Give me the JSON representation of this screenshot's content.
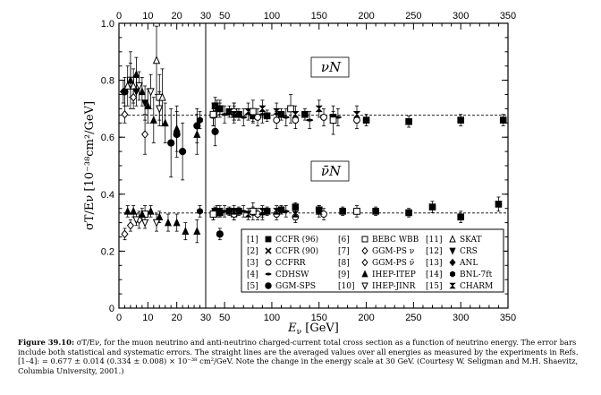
{
  "chart_data": {
    "type": "scatter",
    "x_axis": {
      "label_symbol": "E",
      "label_sub": "ν",
      "label_unit": "[GeV]",
      "break_at": 30,
      "bottom_ticks_low": [
        "0",
        "10",
        "20",
        "30"
      ],
      "bottom_ticks_high": [
        "50",
        "100",
        "150",
        "200",
        "250",
        "300",
        "350"
      ],
      "top_ticks_low": [
        "0",
        "10",
        "20",
        "30"
      ],
      "top_ticks_high": [
        "50",
        "100",
        "150",
        "200",
        "250",
        "300",
        "350"
      ],
      "low_range": [
        0,
        30
      ],
      "high_range": [
        30,
        350
      ]
    },
    "y_axis": {
      "label": "σT/Eν [10⁻³⁸cm²/GeV]",
      "ylim": [
        0,
        1.0
      ],
      "ticks": [
        "0",
        "0.2",
        "0.4",
        "0.6",
        "0.8",
        "1.0"
      ]
    },
    "panel_labels": [
      "νN",
      "ν̄N"
    ],
    "averages": {
      "neutrino": 0.677,
      "antineutrino": 0.334
    },
    "legend": [
      {
        "id": "[1]",
        "name": "CCFR (96)",
        "marker": "square"
      },
      {
        "id": "[2]",
        "name": "CCFR (90)",
        "marker": "x"
      },
      {
        "id": "[3]",
        "name": "CCFRR",
        "marker": "circle-open"
      },
      {
        "id": "[4]",
        "name": "CDHSW",
        "marker": "dash"
      },
      {
        "id": "[5]",
        "name": "GGM-SPS",
        "marker": "circle"
      },
      {
        "id": "[6]",
        "name": "BEBC WBB",
        "marker": "square-open"
      },
      {
        "id": "[7]",
        "name": "GGM-PS ν",
        "marker": "diamond-open"
      },
      {
        "id": "[8]",
        "name": "GGM-PS ν̄",
        "marker": "diamond-open"
      },
      {
        "id": "[9]",
        "name": "IHEP-ITEP",
        "marker": "triangle"
      },
      {
        "id": "[10]",
        "name": "IHEP-JINR",
        "marker": "triangle-down-open"
      },
      {
        "id": "[11]",
        "name": "SKAT",
        "marker": "triangle-open"
      },
      {
        "id": "[12]",
        "name": "CRS",
        "marker": "triangle-down"
      },
      {
        "id": "[13]",
        "name": "ANL",
        "marker": "diamond"
      },
      {
        "id": "[14]",
        "name": "BNL-7ft",
        "marker": "hexagon"
      },
      {
        "id": "[15]",
        "name": "CHARM",
        "marker": "bowtie"
      }
    ],
    "series": [
      {
        "ref": "[1]",
        "marker": "square",
        "points": [
          {
            "x": 40,
            "y": 0.71,
            "e": 0.03
          },
          {
            "x": 45,
            "y": 0.7,
            "e": 0.02
          },
          {
            "x": 55,
            "y": 0.69,
            "e": 0.02
          },
          {
            "x": 65,
            "y": 0.68,
            "e": 0.02
          },
          {
            "x": 80,
            "y": 0.675,
            "e": 0.02
          },
          {
            "x": 95,
            "y": 0.675,
            "e": 0.02
          },
          {
            "x": 110,
            "y": 0.68,
            "e": 0.02
          },
          {
            "x": 135,
            "y": 0.68,
            "e": 0.02
          },
          {
            "x": 165,
            "y": 0.67,
            "e": 0.02
          },
          {
            "x": 200,
            "y": 0.66,
            "e": 0.02
          },
          {
            "x": 245,
            "y": 0.655,
            "e": 0.02
          },
          {
            "x": 300,
            "y": 0.66,
            "e": 0.02
          },
          {
            "x": 345,
            "y": 0.66,
            "e": 0.02
          },
          {
            "x": 40,
            "y": 0.34,
            "e": 0.015
          },
          {
            "x": 45,
            "y": 0.335,
            "e": 0.015
          },
          {
            "x": 55,
            "y": 0.34,
            "e": 0.015
          },
          {
            "x": 65,
            "y": 0.34,
            "e": 0.015
          },
          {
            "x": 80,
            "y": 0.34,
            "e": 0.015
          },
          {
            "x": 95,
            "y": 0.34,
            "e": 0.015
          },
          {
            "x": 110,
            "y": 0.345,
            "e": 0.015
          },
          {
            "x": 125,
            "y": 0.355,
            "e": 0.015
          },
          {
            "x": 150,
            "y": 0.345,
            "e": 0.015
          },
          {
            "x": 175,
            "y": 0.34,
            "e": 0.015
          },
          {
            "x": 210,
            "y": 0.34,
            "e": 0.015
          },
          {
            "x": 245,
            "y": 0.335,
            "e": 0.015
          },
          {
            "x": 270,
            "y": 0.355,
            "e": 0.02
          },
          {
            "x": 300,
            "y": 0.32,
            "e": 0.02
          },
          {
            "x": 340,
            "y": 0.365,
            "e": 0.025
          }
        ]
      },
      {
        "ref": "[2]",
        "marker": "x",
        "points": [
          {
            "x": 42,
            "y": 0.7,
            "e": 0.03
          },
          {
            "x": 60,
            "y": 0.69,
            "e": 0.03
          },
          {
            "x": 42,
            "y": 0.34,
            "e": 0.02
          },
          {
            "x": 60,
            "y": 0.33,
            "e": 0.02
          }
        ]
      },
      {
        "ref": "[3]",
        "marker": "circle-open",
        "points": [
          {
            "x": 60,
            "y": 0.69,
            "e": 0.03
          },
          {
            "x": 85,
            "y": 0.67,
            "e": 0.03
          },
          {
            "x": 105,
            "y": 0.66,
            "e": 0.03
          },
          {
            "x": 125,
            "y": 0.66,
            "e": 0.03
          },
          {
            "x": 155,
            "y": 0.67,
            "e": 0.03
          },
          {
            "x": 190,
            "y": 0.66,
            "e": 0.03
          },
          {
            "x": 60,
            "y": 0.33,
            "e": 0.02
          },
          {
            "x": 85,
            "y": 0.33,
            "e": 0.02
          },
          {
            "x": 105,
            "y": 0.33,
            "e": 0.02
          },
          {
            "x": 125,
            "y": 0.32,
            "e": 0.02
          },
          {
            "x": 155,
            "y": 0.33,
            "e": 0.02
          }
        ]
      },
      {
        "ref": "[4]",
        "marker": "dash",
        "points": [
          {
            "x": 38,
            "y": 0.67,
            "e": 0.03
          },
          {
            "x": 50,
            "y": 0.68,
            "e": 0.03
          },
          {
            "x": 70,
            "y": 0.67,
            "e": 0.03
          },
          {
            "x": 90,
            "y": 0.68,
            "e": 0.03
          },
          {
            "x": 115,
            "y": 0.67,
            "e": 0.03
          },
          {
            "x": 140,
            "y": 0.66,
            "e": 0.03
          },
          {
            "x": 170,
            "y": 0.67,
            "e": 0.03
          },
          {
            "x": 38,
            "y": 0.33,
            "e": 0.02
          },
          {
            "x": 50,
            "y": 0.34,
            "e": 0.02
          },
          {
            "x": 70,
            "y": 0.34,
            "e": 0.02
          },
          {
            "x": 90,
            "y": 0.33,
            "e": 0.02
          },
          {
            "x": 115,
            "y": 0.34,
            "e": 0.02
          }
        ]
      },
      {
        "ref": "[5]",
        "marker": "circle",
        "points": [
          {
            "x": 2,
            "y": 0.76,
            "e": 0.05
          },
          {
            "x": 18,
            "y": 0.58,
            "e": 0.12
          },
          {
            "x": 20,
            "y": 0.61,
            "e": 0.08
          },
          {
            "x": 22,
            "y": 0.55,
            "e": 0.1
          },
          {
            "x": 27,
            "y": 0.64,
            "e": 0.06
          },
          {
            "x": 40,
            "y": 0.62,
            "e": 0.05
          },
          {
            "x": 45,
            "y": 0.26,
            "e": 0.02
          }
        ]
      },
      {
        "ref": "[6]",
        "marker": "square-open",
        "points": [
          {
            "x": 4,
            "y": 0.8,
            "e": 0.1
          },
          {
            "x": 14,
            "y": 0.74,
            "e": 0.08
          },
          {
            "x": 38,
            "y": 0.68,
            "e": 0.04
          },
          {
            "x": 80,
            "y": 0.69,
            "e": 0.04
          },
          {
            "x": 120,
            "y": 0.7,
            "e": 0.05
          },
          {
            "x": 165,
            "y": 0.66,
            "e": 0.05
          },
          {
            "x": 9,
            "y": 0.33,
            "e": 0.03
          },
          {
            "x": 38,
            "y": 0.33,
            "e": 0.02
          },
          {
            "x": 80,
            "y": 0.34,
            "e": 0.03
          },
          {
            "x": 190,
            "y": 0.34,
            "e": 0.02
          }
        ]
      },
      {
        "ref": "[7]",
        "marker": "diamond-open",
        "points": [
          {
            "x": 2,
            "y": 0.68,
            "e": 0.03
          },
          {
            "x": 5,
            "y": 0.74,
            "e": 0.04
          },
          {
            "x": 9,
            "y": 0.61,
            "e": 0.07
          }
        ]
      },
      {
        "ref": "[8]",
        "marker": "diamond-open",
        "points": [
          {
            "x": 2,
            "y": 0.26,
            "e": 0.02
          },
          {
            "x": 4,
            "y": 0.29,
            "e": 0.02
          },
          {
            "x": 7,
            "y": 0.31,
            "e": 0.03
          }
        ]
      },
      {
        "ref": "[9]",
        "marker": "triangle",
        "points": [
          {
            "x": 4,
            "y": 0.8,
            "e": 0.06
          },
          {
            "x": 6,
            "y": 0.82,
            "e": 0.06
          },
          {
            "x": 8,
            "y": 0.76,
            "e": 0.05
          },
          {
            "x": 10,
            "y": 0.71,
            "e": 0.06
          },
          {
            "x": 12,
            "y": 0.66,
            "e": 0.08
          },
          {
            "x": 16,
            "y": 0.65,
            "e": 0.07
          },
          {
            "x": 20,
            "y": 0.63,
            "e": 0.08
          },
          {
            "x": 27,
            "y": 0.61,
            "e": 0.07
          },
          {
            "x": 3,
            "y": 0.34,
            "e": 0.02
          },
          {
            "x": 5,
            "y": 0.34,
            "e": 0.02
          },
          {
            "x": 8,
            "y": 0.33,
            "e": 0.02
          },
          {
            "x": 11,
            "y": 0.34,
            "e": 0.02
          },
          {
            "x": 14,
            "y": 0.32,
            "e": 0.02
          },
          {
            "x": 17,
            "y": 0.3,
            "e": 0.03
          },
          {
            "x": 20,
            "y": 0.3,
            "e": 0.03
          },
          {
            "x": 23,
            "y": 0.27,
            "e": 0.03
          },
          {
            "x": 27,
            "y": 0.27,
            "e": 0.04
          }
        ]
      },
      {
        "ref": "[10]",
        "marker": "triangle-down-open",
        "points": [
          {
            "x": 7,
            "y": 0.78,
            "e": 0.05
          },
          {
            "x": 11,
            "y": 0.76,
            "e": 0.06
          },
          {
            "x": 14,
            "y": 0.7,
            "e": 0.06
          },
          {
            "x": 6,
            "y": 0.31,
            "e": 0.02
          },
          {
            "x": 9,
            "y": 0.3,
            "e": 0.02
          },
          {
            "x": 13,
            "y": 0.3,
            "e": 0.03
          }
        ]
      },
      {
        "ref": "[11]",
        "marker": "triangle-open",
        "points": [
          {
            "x": 3,
            "y": 0.78,
            "e": 0.07
          },
          {
            "x": 5,
            "y": 0.78,
            "e": 0.06
          },
          {
            "x": 13,
            "y": 0.87,
            "e": 0.12
          },
          {
            "x": 15,
            "y": 0.74,
            "e": 0.1
          }
        ]
      },
      {
        "ref": "[12]",
        "marker": "triangle-down",
        "points": [
          {
            "x": 6,
            "y": 0.76,
            "e": 0.05
          },
          {
            "x": 9,
            "y": 0.72,
            "e": 0.06
          }
        ]
      },
      {
        "ref": "[13]",
        "marker": "diamond",
        "points": [
          {
            "x": 1.5,
            "y": 0.76,
            "e": 0.04
          }
        ]
      },
      {
        "ref": "[14]",
        "marker": "hexagon",
        "points": [
          {
            "x": 28,
            "y": 0.66,
            "e": 0.03
          },
          {
            "x": 28,
            "y": 0.34,
            "e": 0.02
          }
        ]
      },
      {
        "ref": "[15]",
        "marker": "bowtie",
        "points": [
          {
            "x": 45,
            "y": 0.7,
            "e": 0.03
          },
          {
            "x": 60,
            "y": 0.68,
            "e": 0.03
          },
          {
            "x": 75,
            "y": 0.69,
            "e": 0.03
          },
          {
            "x": 90,
            "y": 0.7,
            "e": 0.03
          },
          {
            "x": 105,
            "y": 0.69,
            "e": 0.03
          },
          {
            "x": 125,
            "y": 0.68,
            "e": 0.03
          },
          {
            "x": 150,
            "y": 0.7,
            "e": 0.03
          },
          {
            "x": 190,
            "y": 0.68,
            "e": 0.03
          },
          {
            "x": 45,
            "y": 0.34,
            "e": 0.02
          },
          {
            "x": 60,
            "y": 0.34,
            "e": 0.02
          },
          {
            "x": 75,
            "y": 0.33,
            "e": 0.02
          },
          {
            "x": 90,
            "y": 0.34,
            "e": 0.02
          },
          {
            "x": 105,
            "y": 0.34,
            "e": 0.02
          },
          {
            "x": 125,
            "y": 0.33,
            "e": 0.02
          },
          {
            "x": 150,
            "y": 0.34,
            "e": 0.02
          }
        ]
      }
    ]
  },
  "caption": {
    "figure_label": "Figure 39.10:",
    "text": "σT/Eν, for the muon neutrino and anti-neutrino charged-current total cross section as a function of neutrino energy. The error bars include both statistical and systematic errors. The straight lines are the averaged values over all energies as measured by the experiments in Refs. [1–4]: = 0.677 ± 0.014 (0.334 ± 0.008) × 10⁻³⁸ cm²/GeV. Note the change in the energy scale at 30 GeV. (Courtesy W. Seligman and M.H. Shaevitz, Columbia University, 2001.)"
  }
}
